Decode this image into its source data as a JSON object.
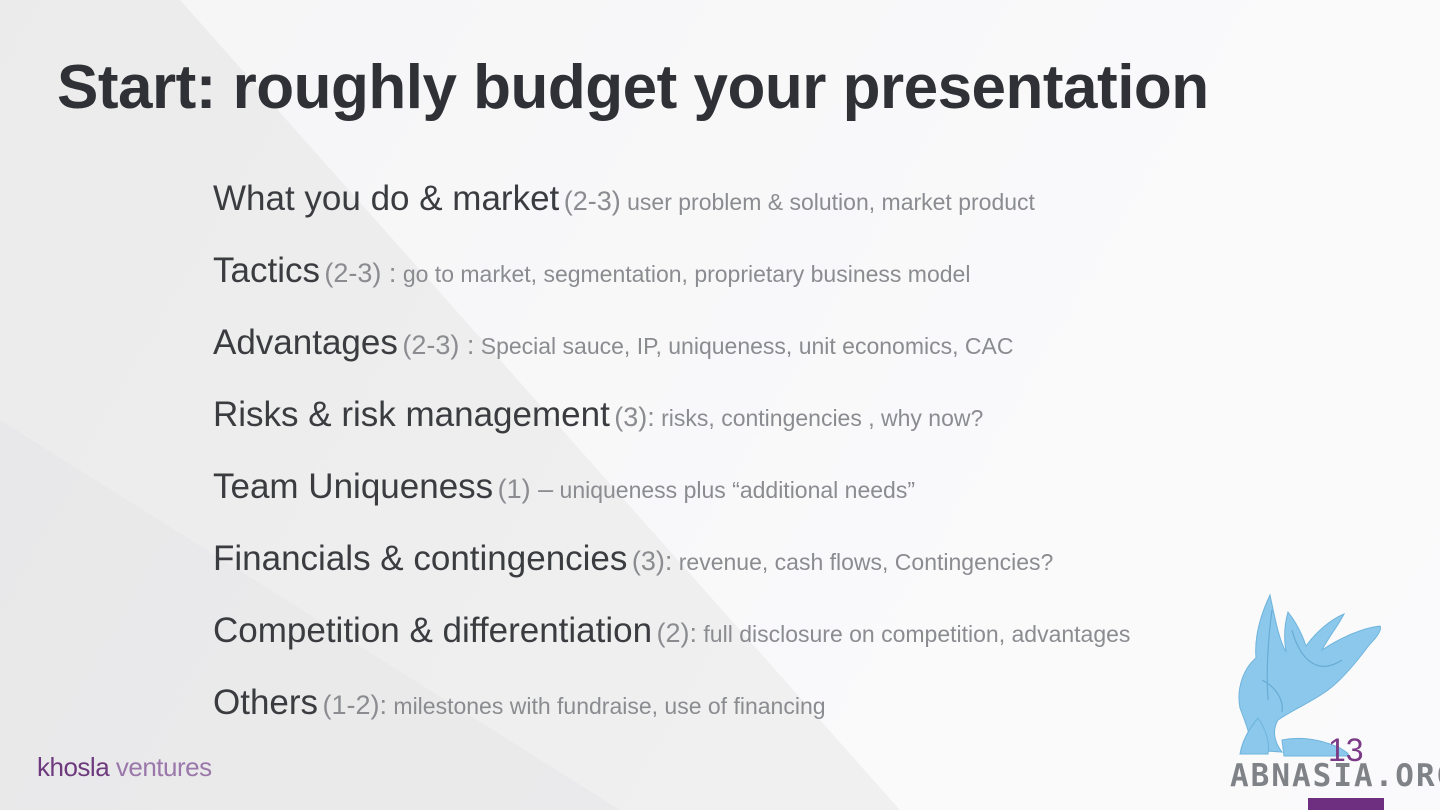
{
  "slide": {
    "title": "Start: roughly budget your presentation",
    "page_number": "13"
  },
  "items": [
    {
      "main": "What you do & market",
      "count": "(2-3)",
      "desc": " user problem & solution, market product"
    },
    {
      "main": "Tactics",
      "count": "(2-3) :",
      "desc": " go to market, segmentation, proprietary business model"
    },
    {
      "main": "Advantages",
      "count": "(2-3) :",
      "desc": " Special sauce, IP, uniqueness, unit economics, CAC"
    },
    {
      "main": "Risks & risk management",
      "count": "(3):",
      "desc": " risks, contingencies , why now?"
    },
    {
      "main": "Team Uniqueness",
      "count": "(1) –",
      "desc": " uniqueness plus “additional needs”"
    },
    {
      "main": "Financials & contingencies",
      "count": "(3):",
      "desc": " revenue, cash flows, Contingencies?"
    },
    {
      "main": "Competition & differentiation",
      "count": "(2):",
      "desc": " full disclosure on competition, advantages"
    },
    {
      "main": "Others",
      "count": "(1-2):",
      "desc": " milestones with fundraise, use of financing"
    }
  ],
  "brand": {
    "khosla": "khosla",
    "ventures": "ventures"
  },
  "watermark": {
    "text": "ABNASIA.ORG",
    "mascot_icon": "griffin-icon"
  },
  "colors": {
    "accent": "#6e2f80",
    "title": "#2f3136",
    "mascot": "#8cc8ec"
  }
}
